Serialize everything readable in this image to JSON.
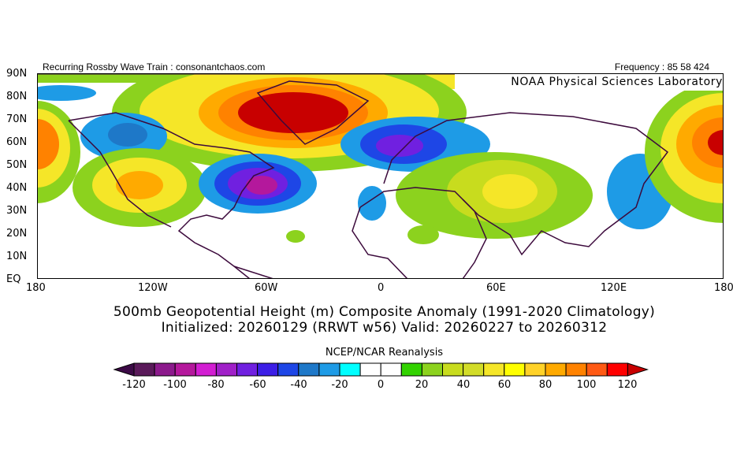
{
  "header": {
    "left": "Recurring Rossby Wave Train : consonantchaos.com",
    "right": "Frequency : 85 58 424",
    "lab": "NOAA Physical Sciences Laboratory"
  },
  "lat_labels": [
    "90N",
    "80N",
    "70N",
    "60N",
    "50N",
    "40N",
    "30N",
    "20N",
    "10N",
    "EQ"
  ],
  "lon_labels": [
    "180",
    "120W",
    "60W",
    "0",
    "60E",
    "120E",
    "180"
  ],
  "title": {
    "line1": "500mb Geopotential Height (m) Composite Anomaly (1991-2020 Climatology)",
    "line2": "Initialized: 20260129 (RRWT w56) Valid: 20260227 to 20260312"
  },
  "colorbar": {
    "source": "NCEP/NCAR Reanalysis",
    "labels": [
      "-120",
      "-100",
      "-80",
      "-60",
      "-40",
      "-20",
      "0",
      "20",
      "40",
      "60",
      "80",
      "100",
      "120"
    ],
    "under_color": "#3c0a46",
    "over_color": "#c80000",
    "colors": [
      "#5a1a5a",
      "#8c1a8c",
      "#b4189c",
      "#d21ed2",
      "#a020c8",
      "#7020e0",
      "#3c1ee6",
      "#1e46e6",
      "#1e78c8",
      "#1e9be6",
      "#00ffff",
      "#ffffff",
      "#ffffff",
      "#32d200",
      "#8cd21e",
      "#c8dc1e",
      "#d2dc28",
      "#f5e628",
      "#ffff00",
      "#ffd228",
      "#ffaa00",
      "#ff8200",
      "#ff5a14",
      "#ff0000"
    ]
  }
}
